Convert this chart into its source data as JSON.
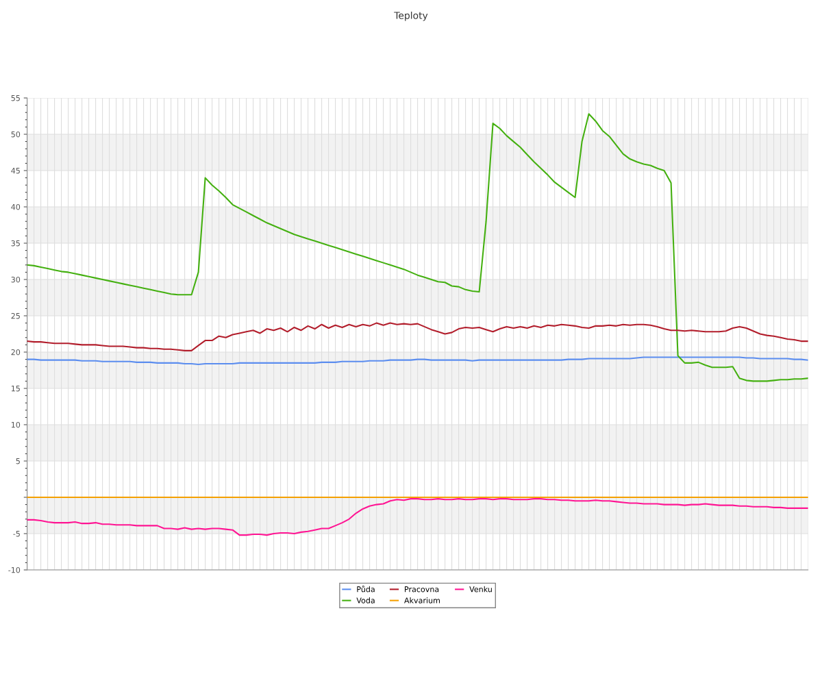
{
  "chart_data": {
    "type": "line",
    "title": "Teploty",
    "categories": [
      null,
      null,
      null,
      null,
      null,
      null,
      null,
      null,
      null,
      null,
      null,
      null,
      null,
      null,
      null,
      null,
      null,
      null,
      null,
      null,
      null,
      null,
      null,
      null,
      null,
      null,
      null,
      null,
      null,
      null,
      null,
      null,
      null,
      null,
      null,
      null,
      null,
      null,
      null,
      null,
      null,
      null,
      null,
      null,
      null,
      null,
      null,
      null,
      null,
      null,
      null,
      null,
      null,
      null,
      null,
      null,
      null,
      null,
      null,
      null,
      null,
      null,
      null,
      null,
      null,
      null,
      null,
      null,
      null,
      null,
      null,
      null,
      null,
      null,
      null,
      null,
      null,
      null,
      null,
      null,
      null,
      null,
      null,
      null,
      null,
      null,
      null,
      null,
      null,
      null,
      null,
      null,
      null,
      null,
      null,
      null,
      null,
      null,
      null,
      null,
      null,
      null,
      null,
      null,
      null,
      null,
      null,
      null,
      null,
      null,
      null,
      null,
      null,
      null,
      null
    ],
    "series": [
      {
        "name": "Půda",
        "color": "#5b8def",
        "values": [
          19.0,
          19.0,
          18.9,
          18.9,
          18.9,
          18.9,
          18.9,
          18.9,
          18.8,
          18.8,
          18.8,
          18.7,
          18.7,
          18.7,
          18.7,
          18.7,
          18.6,
          18.6,
          18.6,
          18.5,
          18.5,
          18.5,
          18.5,
          18.4,
          18.4,
          18.3,
          18.4,
          18.4,
          18.4,
          18.4,
          18.4,
          18.5,
          18.5,
          18.5,
          18.5,
          18.5,
          18.5,
          18.5,
          18.5,
          18.5,
          18.5,
          18.5,
          18.5,
          18.6,
          18.6,
          18.6,
          18.7,
          18.7,
          18.7,
          18.7,
          18.8,
          18.8,
          18.8,
          18.9,
          18.9,
          18.9,
          18.9,
          19.0,
          19.0,
          18.9,
          18.9,
          18.9,
          18.9,
          18.9,
          18.9,
          18.8,
          18.9,
          18.9,
          18.9,
          18.9,
          18.9,
          18.9,
          18.9,
          18.9,
          18.9,
          18.9,
          18.9,
          18.9,
          18.9,
          19.0,
          19.0,
          19.0,
          19.1,
          19.1,
          19.1,
          19.1,
          19.1,
          19.1,
          19.1,
          19.2,
          19.3,
          19.3,
          19.3,
          19.3,
          19.3,
          19.3,
          19.3,
          19.3,
          19.3,
          19.3,
          19.3,
          19.3,
          19.3,
          19.3,
          19.3,
          19.2,
          19.2,
          19.1,
          19.1,
          19.1,
          19.1,
          19.1,
          19.0,
          19.0,
          18.9
        ]
      },
      {
        "name": "Voda",
        "color": "#44b010",
        "values": [
          32.0,
          31.9,
          31.7,
          31.5,
          31.3,
          31.1,
          31.0,
          30.8,
          30.6,
          30.4,
          30.2,
          30.0,
          29.8,
          29.6,
          29.4,
          29.2,
          29.0,
          28.8,
          28.6,
          28.4,
          28.2,
          28.0,
          27.9,
          27.9,
          27.9,
          31.0,
          44.0,
          43.0,
          42.2,
          41.3,
          40.3,
          39.8,
          39.3,
          38.8,
          38.3,
          37.8,
          37.4,
          37.0,
          36.6,
          36.2,
          35.9,
          35.6,
          35.3,
          35.0,
          34.7,
          34.4,
          34.1,
          33.8,
          33.5,
          33.2,
          32.9,
          32.6,
          32.3,
          32.0,
          31.7,
          31.4,
          31.0,
          30.6,
          30.3,
          30.0,
          29.7,
          29.6,
          29.1,
          29.0,
          28.6,
          28.4,
          28.3,
          38.0,
          51.5,
          50.8,
          49.8,
          49.0,
          48.2,
          47.2,
          46.2,
          45.3,
          44.4,
          43.4,
          42.7,
          42.0,
          41.3,
          49.0,
          52.8,
          51.8,
          50.5,
          49.7,
          48.5,
          47.3,
          46.6,
          46.2,
          45.9,
          45.7,
          45.3,
          45.0,
          43.3,
          19.5,
          18.5,
          18.5,
          18.6,
          18.2,
          17.9,
          17.9,
          17.9,
          18.0,
          16.4,
          16.1,
          16.0,
          16.0,
          16.0,
          16.1,
          16.2,
          16.2,
          16.3,
          16.3,
          16.4
        ]
      },
      {
        "name": "Pracovna",
        "color": "#b21d2b",
        "values": [
          21.5,
          21.4,
          21.4,
          21.3,
          21.2,
          21.2,
          21.2,
          21.1,
          21.0,
          21.0,
          21.0,
          20.9,
          20.8,
          20.8,
          20.8,
          20.7,
          20.6,
          20.6,
          20.5,
          20.5,
          20.4,
          20.4,
          20.3,
          20.2,
          20.2,
          20.9,
          21.6,
          21.6,
          22.2,
          22.0,
          22.4,
          22.6,
          22.8,
          23.0,
          22.6,
          23.2,
          23.0,
          23.3,
          22.8,
          23.4,
          23.0,
          23.6,
          23.2,
          23.8,
          23.3,
          23.7,
          23.4,
          23.8,
          23.5,
          23.8,
          23.6,
          24.0,
          23.7,
          24.0,
          23.8,
          23.9,
          23.8,
          23.9,
          23.5,
          23.1,
          22.8,
          22.5,
          22.7,
          23.2,
          23.4,
          23.3,
          23.4,
          23.1,
          22.8,
          23.2,
          23.5,
          23.3,
          23.5,
          23.3,
          23.6,
          23.4,
          23.7,
          23.6,
          23.8,
          23.7,
          23.6,
          23.4,
          23.3,
          23.6,
          23.6,
          23.7,
          23.6,
          23.8,
          23.7,
          23.8,
          23.8,
          23.7,
          23.5,
          23.2,
          23.0,
          23.0,
          22.9,
          23.0,
          22.9,
          22.8,
          22.8,
          22.8,
          22.9,
          23.3,
          23.5,
          23.3,
          22.9,
          22.5,
          22.3,
          22.2,
          22.0,
          21.8,
          21.7,
          21.5,
          21.5
        ]
      },
      {
        "name": "Akvarium",
        "color": "#f5a000",
        "values": [
          0,
          0,
          0,
          0,
          0,
          0,
          0,
          0,
          0,
          0,
          0,
          0,
          0,
          0,
          0,
          0,
          0,
          0,
          0,
          0,
          0,
          0,
          0,
          0,
          0,
          0,
          0,
          0,
          0,
          0,
          0,
          0,
          0,
          0,
          0,
          0,
          0,
          0,
          0,
          0,
          0,
          0,
          0,
          0,
          0,
          0,
          0,
          0,
          0,
          0,
          0,
          0,
          0,
          0,
          0,
          0,
          0,
          0,
          0,
          0,
          0,
          0,
          0,
          0,
          0,
          0,
          0,
          0,
          0,
          0,
          0,
          0,
          0,
          0,
          0,
          0,
          0,
          0,
          0,
          0,
          0,
          0,
          0,
          0,
          0,
          0,
          0,
          0,
          0,
          0,
          0,
          0,
          0,
          0,
          0,
          0,
          0,
          0,
          0,
          0,
          0,
          0,
          0,
          0,
          0,
          0,
          0,
          0,
          0,
          0,
          0,
          0,
          0,
          0,
          0
        ]
      },
      {
        "name": "Venku",
        "color": "#ff1493",
        "values": [
          -3.1,
          -3.1,
          -3.2,
          -3.4,
          -3.5,
          -3.5,
          -3.5,
          -3.4,
          -3.6,
          -3.6,
          -3.5,
          -3.7,
          -3.7,
          -3.8,
          -3.8,
          -3.8,
          -3.9,
          -3.9,
          -3.9,
          -3.9,
          -4.3,
          -4.3,
          -4.4,
          -4.2,
          -4.4,
          -4.3,
          -4.4,
          -4.3,
          -4.3,
          -4.4,
          -4.5,
          -5.2,
          -5.2,
          -5.1,
          -5.1,
          -5.2,
          -5.0,
          -4.9,
          -4.9,
          -5.0,
          -4.8,
          -4.7,
          -4.5,
          -4.3,
          -4.3,
          -3.9,
          -3.5,
          -3.0,
          -2.2,
          -1.6,
          -1.2,
          -1.0,
          -0.9,
          -0.5,
          -0.3,
          -0.4,
          -0.2,
          -0.2,
          -0.3,
          -0.3,
          -0.2,
          -0.3,
          -0.3,
          -0.2,
          -0.3,
          -0.3,
          -0.2,
          -0.2,
          -0.3,
          -0.2,
          -0.2,
          -0.3,
          -0.3,
          -0.3,
          -0.2,
          -0.2,
          -0.3,
          -0.3,
          -0.4,
          -0.4,
          -0.5,
          -0.5,
          -0.5,
          -0.4,
          -0.5,
          -0.5,
          -0.6,
          -0.7,
          -0.8,
          -0.8,
          -0.9,
          -0.9,
          -0.9,
          -1.0,
          -1.0,
          -1.0,
          -1.1,
          -1.0,
          -1.0,
          -0.9,
          -1.0,
          -1.1,
          -1.1,
          -1.1,
          -1.2,
          -1.2,
          -1.3,
          -1.3,
          -1.3,
          -1.4,
          -1.4,
          -1.5,
          -1.5,
          -1.5,
          -1.5
        ]
      }
    ],
    "ylim": [
      -10,
      55
    ],
    "yticks": [
      -10,
      -5,
      {
        "value": 0,
        "label": null
      },
      5,
      10,
      15,
      20,
      25,
      30,
      35,
      40,
      45,
      50,
      55
    ],
    "bands": [
      {
        "axis": "y",
        "from": -5,
        "to": 0,
        "color": "#f2f2f2"
      },
      {
        "axis": "y",
        "from": 5,
        "to": 10,
        "color": "#f2f2f2"
      },
      {
        "axis": "y",
        "from": 15,
        "to": 20,
        "color": "#f2f2f2"
      },
      {
        "axis": "y",
        "from": 25,
        "to": 30,
        "color": "#f2f2f2"
      },
      {
        "axis": "y",
        "from": 35,
        "to": 40,
        "color": "#f2f2f2"
      },
      {
        "axis": "y",
        "from": 45,
        "to": 50,
        "color": "#f2f2f2"
      }
    ],
    "grid": true,
    "legend": "bottom",
    "marker": "none",
    "line_style": "solid"
  }
}
